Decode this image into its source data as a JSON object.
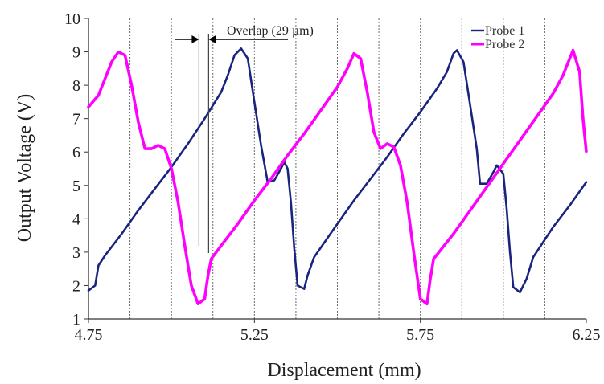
{
  "chart_data": {
    "type": "line",
    "xlabel": "Displacement (mm)",
    "ylabel": "Output Voltage (V)",
    "xlim": [
      4.75,
      6.25
    ],
    "ylim": [
      1,
      10
    ],
    "x_ticks": [
      "4.75",
      "5.25",
      "5.75",
      "6.25"
    ],
    "y_ticks": [
      "1",
      "2",
      "3",
      "4",
      "5",
      "6",
      "7",
      "8",
      "9",
      "10"
    ],
    "grid": "dotted-vertical",
    "legend_position": "top-right",
    "annotation": {
      "text": "Overlap (29 µm)",
      "x_start": 5.083,
      "x_end": 5.112
    },
    "series": [
      {
        "name": "Probe 1",
        "color": "#1a237e",
        "points": [
          [
            4.75,
            1.85
          ],
          [
            4.77,
            2.0
          ],
          [
            4.78,
            2.6
          ],
          [
            4.8,
            2.9
          ],
          [
            4.85,
            3.55
          ],
          [
            4.9,
            4.25
          ],
          [
            4.95,
            4.9
          ],
          [
            5.0,
            5.55
          ],
          [
            5.05,
            6.25
          ],
          [
            5.1,
            7.0
          ],
          [
            5.15,
            7.8
          ],
          [
            5.17,
            8.3
          ],
          [
            5.19,
            8.9
          ],
          [
            5.21,
            9.1
          ],
          [
            5.23,
            8.8
          ],
          [
            5.25,
            7.5
          ],
          [
            5.27,
            6.2
          ],
          [
            5.29,
            5.1
          ],
          [
            5.31,
            5.15
          ],
          [
            5.33,
            5.5
          ],
          [
            5.34,
            5.7
          ],
          [
            5.35,
            5.5
          ],
          [
            5.36,
            4.5
          ],
          [
            5.37,
            3.1
          ],
          [
            5.38,
            2.0
          ],
          [
            5.4,
            1.9
          ],
          [
            5.41,
            2.3
          ],
          [
            5.43,
            2.85
          ],
          [
            5.5,
            3.85
          ],
          [
            5.55,
            4.55
          ],
          [
            5.6,
            5.2
          ],
          [
            5.65,
            5.85
          ],
          [
            5.7,
            6.55
          ],
          [
            5.75,
            7.2
          ],
          [
            5.8,
            7.9
          ],
          [
            5.83,
            8.4
          ],
          [
            5.85,
            8.95
          ],
          [
            5.86,
            9.05
          ],
          [
            5.88,
            8.7
          ],
          [
            5.9,
            7.4
          ],
          [
            5.92,
            6.1
          ],
          [
            5.93,
            5.05
          ],
          [
            5.95,
            5.05
          ],
          [
            5.97,
            5.4
          ],
          [
            5.98,
            5.6
          ],
          [
            6.0,
            5.35
          ],
          [
            6.01,
            4.3
          ],
          [
            6.02,
            3.0
          ],
          [
            6.03,
            1.95
          ],
          [
            6.05,
            1.8
          ],
          [
            6.07,
            2.2
          ],
          [
            6.09,
            2.85
          ],
          [
            6.15,
            3.75
          ],
          [
            6.2,
            4.4
          ],
          [
            6.25,
            5.1
          ]
        ]
      },
      {
        "name": "Probe 2",
        "color": "#ff00ff",
        "points": [
          [
            4.75,
            7.35
          ],
          [
            4.78,
            7.7
          ],
          [
            4.8,
            8.2
          ],
          [
            4.82,
            8.7
          ],
          [
            4.84,
            9.0
          ],
          [
            4.86,
            8.9
          ],
          [
            4.88,
            8.0
          ],
          [
            4.9,
            6.9
          ],
          [
            4.92,
            6.1
          ],
          [
            4.94,
            6.1
          ],
          [
            4.96,
            6.2
          ],
          [
            4.98,
            6.1
          ],
          [
            5.0,
            5.5
          ],
          [
            5.02,
            4.5
          ],
          [
            5.04,
            3.2
          ],
          [
            5.06,
            2.0
          ],
          [
            5.08,
            1.45
          ],
          [
            5.1,
            1.6
          ],
          [
            5.11,
            2.3
          ],
          [
            5.12,
            2.8
          ],
          [
            5.15,
            3.2
          ],
          [
            5.2,
            3.85
          ],
          [
            5.25,
            4.55
          ],
          [
            5.3,
            5.2
          ],
          [
            5.35,
            5.9
          ],
          [
            5.4,
            6.55
          ],
          [
            5.45,
            7.25
          ],
          [
            5.5,
            7.95
          ],
          [
            5.53,
            8.5
          ],
          [
            5.55,
            8.95
          ],
          [
            5.57,
            8.8
          ],
          [
            5.59,
            7.8
          ],
          [
            5.61,
            6.6
          ],
          [
            5.63,
            6.1
          ],
          [
            5.65,
            6.25
          ],
          [
            5.67,
            6.15
          ],
          [
            5.69,
            5.6
          ],
          [
            5.71,
            4.5
          ],
          [
            5.73,
            3.0
          ],
          [
            5.75,
            1.6
          ],
          [
            5.77,
            1.45
          ],
          [
            5.78,
            2.2
          ],
          [
            5.79,
            2.8
          ],
          [
            5.85,
            3.55
          ],
          [
            5.9,
            4.25
          ],
          [
            5.95,
            4.95
          ],
          [
            6.0,
            5.65
          ],
          [
            6.05,
            6.35
          ],
          [
            6.1,
            7.05
          ],
          [
            6.15,
            7.75
          ],
          [
            6.18,
            8.3
          ],
          [
            6.21,
            9.05
          ],
          [
            6.23,
            8.4
          ],
          [
            6.24,
            7.0
          ],
          [
            6.25,
            6.0
          ]
        ]
      }
    ]
  }
}
